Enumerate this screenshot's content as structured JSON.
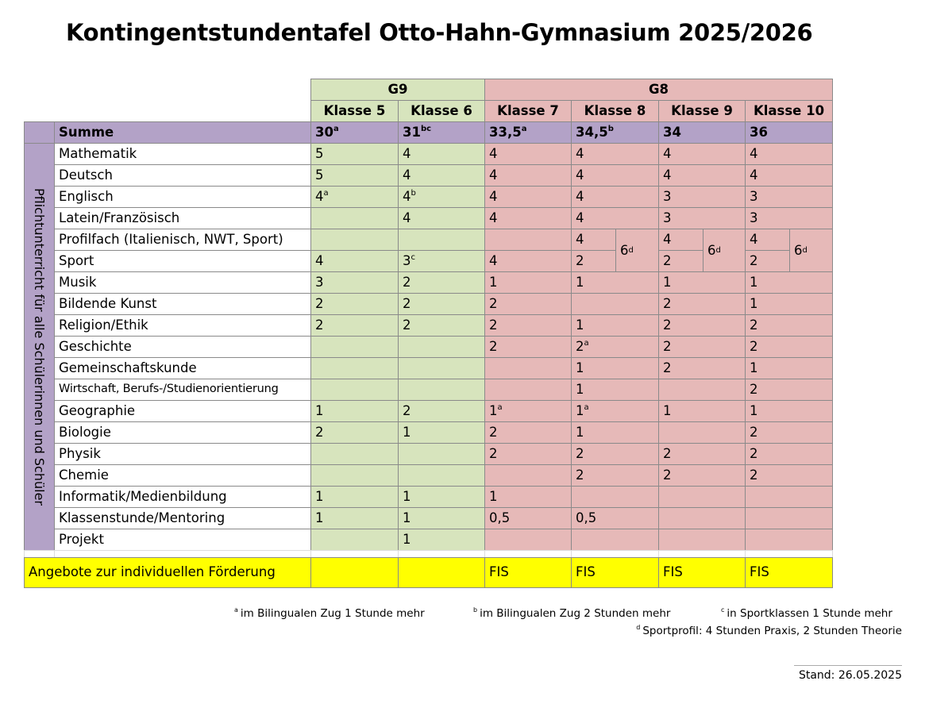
{
  "title": "Kontingentstundentafel Otto-Hahn-Gymnasium 2025/2026",
  "groups": [
    "G9",
    "G8"
  ],
  "classes": [
    "Klasse 5",
    "Klasse 6",
    "Klasse 7",
    "Klasse 8",
    "Klasse 9",
    "Klasse 10"
  ],
  "summe": {
    "label": "Summe",
    "values": [
      {
        "text": "30",
        "sup": "a"
      },
      {
        "text": "31",
        "sup": "bc"
      },
      {
        "text": "33,5",
        "sup": "a"
      },
      {
        "text": "34,5",
        "sup": "b"
      },
      "34",
      "36"
    ]
  },
  "side_label": "Pflichtunterricht für alle Schülerinnen und Schüler",
  "subjects": [
    {
      "name": "Mathematik",
      "values": [
        "5",
        "4",
        "4",
        "4",
        "4",
        "4"
      ]
    },
    {
      "name": "Deutsch",
      "values": [
        "5",
        "4",
        "4",
        "4",
        "4",
        "4"
      ]
    },
    {
      "name": "Englisch",
      "values": [
        {
          "text": "4",
          "sup": "a"
        },
        {
          "text": "4",
          "sup": "b"
        },
        "4",
        "4",
        "3",
        "3"
      ]
    },
    {
      "name": "Latein/Französisch",
      "values": [
        null,
        "4",
        "4",
        "4",
        "3",
        "3"
      ]
    },
    {
      "name": "Profilfach (Italienisch, NWT, Sport)",
      "values": [
        null,
        null,
        null,
        "4",
        "4",
        "4"
      ]
    },
    {
      "name": "Sport",
      "values": [
        "4",
        {
          "text": "3",
          "sup": "c"
        },
        "4",
        "2",
        "2",
        "2"
      ]
    },
    {
      "name": "Musik",
      "values": [
        "3",
        "2",
        "1",
        "1",
        "1",
        "1"
      ]
    },
    {
      "name": "Bildende Kunst",
      "values": [
        "2",
        "2",
        "2",
        null,
        "2",
        "1"
      ]
    },
    {
      "name": "Religion/Ethik",
      "values": [
        "2",
        "2",
        "2",
        "1",
        "2",
        "2"
      ]
    },
    {
      "name": "Geschichte",
      "values": [
        null,
        null,
        "2",
        {
          "text": "2",
          "sup": "a"
        },
        "2",
        "2"
      ]
    },
    {
      "name": "Gemeinschaftskunde",
      "values": [
        null,
        null,
        null,
        "1",
        "2",
        "1"
      ]
    },
    {
      "name": "Wirtschaft, Berufs-/Studienorientierung",
      "values": [
        null,
        null,
        null,
        "1",
        null,
        "2"
      ]
    },
    {
      "name": "Geographie",
      "values": [
        "1",
        "2",
        {
          "text": "1",
          "sup": "a"
        },
        {
          "text": "1",
          "sup": "a"
        },
        "1",
        "1"
      ]
    },
    {
      "name": "Biologie",
      "values": [
        "2",
        "1",
        "2",
        "1",
        null,
        "2"
      ]
    },
    {
      "name": "Physik",
      "values": [
        null,
        null,
        "2",
        "2",
        "2",
        "2"
      ]
    },
    {
      "name": "Chemie",
      "values": [
        null,
        null,
        null,
        "2",
        "2",
        "2"
      ]
    },
    {
      "name": "Informatik/Medienbildung",
      "values": [
        "1",
        "1",
        "1",
        null,
        null,
        null
      ]
    },
    {
      "name": "Klassenstunde/Mentoring",
      "values": [
        "1",
        "1",
        "0,5",
        "0,5",
        null,
        null
      ]
    },
    {
      "name": "Projekt",
      "values": [
        null,
        "1",
        null,
        null,
        null,
        null
      ]
    }
  ],
  "profile_total": [
    {
      "text": "6",
      "sup": "d"
    },
    {
      "text": "6",
      "sup": "d"
    },
    {
      "text": "6",
      "sup": "d"
    }
  ],
  "offer": {
    "label": "Angebote zur individuellen Förderung",
    "values": [
      null,
      null,
      "FIS",
      "FIS",
      "FIS",
      "FIS"
    ]
  },
  "footnotes": [
    {
      "mark": "a",
      "text": "im Bilingualen Zug 1 Stunde mehr"
    },
    {
      "mark": "b",
      "text": "im Bilingualen Zug 2 Stunden mehr"
    },
    {
      "mark": "c",
      "text": "in Sportklassen 1 Stunde mehr"
    },
    {
      "mark": "d",
      "text": "Sportprofil: 4 Stunden Praxis, 2 Stunden Theorie"
    }
  ],
  "stand": "Stand: 26.05.2025"
}
